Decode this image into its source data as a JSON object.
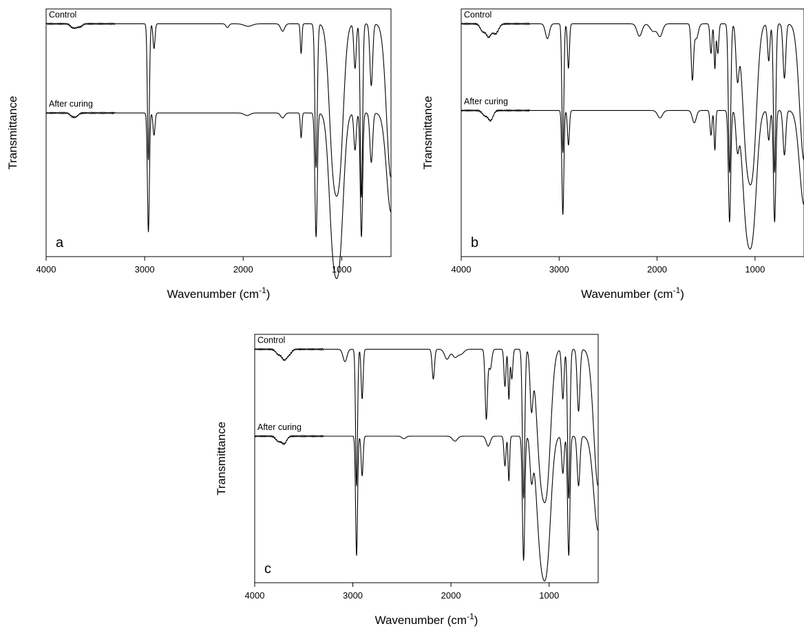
{
  "chart_data": [
    {
      "type": "line",
      "panel_label": "a",
      "xlabel": "Wavenumber (cm",
      "xlabel_superscript": "-1",
      "xlabel_suffix": ")",
      "ylabel": "Transmittance",
      "xlim": [
        4000,
        500
      ],
      "xticks": [
        4000,
        3000,
        2000,
        1000
      ],
      "y_tick_labels": false,
      "y_range_relative": [
        0,
        1
      ],
      "series": [
        {
          "name": "Control",
          "baseline": 0.94,
          "bands": [
            [
              3740,
              20,
              0.01
            ],
            [
              3700,
              25,
              0.015
            ],
            [
              3650,
              20,
              0.01
            ],
            [
              2962,
              10,
              0.55
            ],
            [
              2905,
              10,
              0.1
            ],
            [
              2160,
              15,
              0.015
            ],
            [
              1950,
              40,
              0.01
            ],
            [
              1600,
              20,
              0.03
            ],
            [
              1412,
              8,
              0.12
            ],
            [
              1260,
              12,
              0.58
            ],
            [
              1090,
              40,
              0.5
            ],
            [
              1020,
              40,
              0.52
            ],
            [
              865,
              12,
              0.18
            ],
            [
              800,
              12,
              0.7
            ],
            [
              700,
              14,
              0.25
            ],
            [
              500,
              45,
              0.62
            ]
          ]
        },
        {
          "name": "After curing",
          "baseline": 0.58,
          "bands": [
            [
              3740,
              20,
              0.01
            ],
            [
              3700,
              25,
              0.015
            ],
            [
              2962,
              10,
              0.48
            ],
            [
              2905,
              10,
              0.09
            ],
            [
              1960,
              30,
              0.01
            ],
            [
              1600,
              20,
              0.02
            ],
            [
              1412,
              8,
              0.1
            ],
            [
              1260,
              12,
              0.5
            ],
            [
              1090,
              40,
              0.48
            ],
            [
              1020,
              40,
              0.5
            ],
            [
              865,
              12,
              0.15
            ],
            [
              800,
              12,
              0.5
            ],
            [
              700,
              14,
              0.2
            ],
            [
              500,
              45,
              0.4
            ]
          ]
        }
      ]
    },
    {
      "type": "line",
      "panel_label": "b",
      "xlabel": "Wavenumber (cm",
      "xlabel_superscript": "-1",
      "xlabel_suffix": ")",
      "ylabel": "Transmittance",
      "xlim": [
        4000,
        500
      ],
      "xticks": [
        4000,
        3000,
        2000,
        1000
      ],
      "y_tick_labels": false,
      "y_range_relative": [
        0,
        1
      ],
      "series": [
        {
          "name": "Control",
          "baseline": 0.94,
          "bands": [
            [
              3780,
              25,
              0.03
            ],
            [
              3720,
              25,
              0.05
            ],
            [
              3650,
              30,
              0.04
            ],
            [
              3120,
              20,
              0.06
            ],
            [
              2962,
              10,
              0.52
            ],
            [
              2905,
              10,
              0.18
            ],
            [
              2180,
              25,
              0.05
            ],
            [
              2040,
              30,
              0.03
            ],
            [
              1970,
              25,
              0.05
            ],
            [
              1640,
              12,
              0.22
            ],
            [
              1600,
              20,
              0.06
            ],
            [
              1450,
              10,
              0.12
            ],
            [
              1410,
              8,
              0.18
            ],
            [
              1380,
              10,
              0.12
            ],
            [
              1260,
              12,
              0.6
            ],
            [
              1180,
              15,
              0.2
            ],
            [
              1090,
              40,
              0.45
            ],
            [
              1020,
              40,
              0.5
            ],
            [
              860,
              12,
              0.15
            ],
            [
              800,
              12,
              0.6
            ],
            [
              700,
              14,
              0.22
            ],
            [
              500,
              45,
              0.55
            ]
          ]
        },
        {
          "name": "After curing",
          "baseline": 0.59,
          "bands": [
            [
              3760,
              25,
              0.02
            ],
            [
              3700,
              25,
              0.04
            ],
            [
              2962,
              10,
              0.42
            ],
            [
              2905,
              10,
              0.14
            ],
            [
              1970,
              25,
              0.03
            ],
            [
              1620,
              20,
              0.05
            ],
            [
              1450,
              10,
              0.1
            ],
            [
              1410,
              8,
              0.16
            ],
            [
              1260,
              12,
              0.45
            ],
            [
              1180,
              15,
              0.14
            ],
            [
              1090,
              40,
              0.4
            ],
            [
              1020,
              40,
              0.42
            ],
            [
              860,
              12,
              0.12
            ],
            [
              800,
              12,
              0.45
            ],
            [
              700,
              14,
              0.18
            ],
            [
              500,
              45,
              0.38
            ]
          ]
        }
      ]
    },
    {
      "type": "line",
      "panel_label": "c",
      "xlabel": "Wavenumber (cm",
      "xlabel_superscript": "-1",
      "xlabel_suffix": ")",
      "ylabel": "Transmittance",
      "xlim": [
        4000,
        500
      ],
      "xticks": [
        4000,
        3000,
        2000,
        1000
      ],
      "y_tick_labels": false,
      "y_range_relative": [
        0,
        1
      ],
      "series": [
        {
          "name": "Control",
          "baseline": 0.94,
          "bands": [
            [
              3760,
              25,
              0.02
            ],
            [
              3700,
              25,
              0.04
            ],
            [
              3650,
              25,
              0.02
            ],
            [
              3080,
              20,
              0.05
            ],
            [
              2962,
              10,
              0.55
            ],
            [
              2905,
              10,
              0.2
            ],
            [
              2180,
              12,
              0.12
            ],
            [
              2040,
              25,
              0.04
            ],
            [
              1960,
              25,
              0.03
            ],
            [
              1900,
              30,
              0.02
            ],
            [
              1640,
              12,
              0.28
            ],
            [
              1600,
              15,
              0.08
            ],
            [
              1450,
              10,
              0.15
            ],
            [
              1410,
              8,
              0.2
            ],
            [
              1380,
              10,
              0.12
            ],
            [
              1260,
              12,
              0.6
            ],
            [
              1180,
              15,
              0.22
            ],
            [
              1090,
              40,
              0.42
            ],
            [
              1020,
              40,
              0.48
            ],
            [
              860,
              12,
              0.2
            ],
            [
              800,
              12,
              0.6
            ],
            [
              700,
              14,
              0.25
            ],
            [
              500,
              45,
              0.55
            ]
          ]
        },
        {
          "name": "After curing",
          "baseline": 0.59,
          "bands": [
            [
              3760,
              25,
              0.02
            ],
            [
              3700,
              25,
              0.03
            ],
            [
              2962,
              10,
              0.48
            ],
            [
              2905,
              10,
              0.16
            ],
            [
              2480,
              20,
              0.01
            ],
            [
              1960,
              25,
              0.02
            ],
            [
              1620,
              20,
              0.04
            ],
            [
              1450,
              10,
              0.12
            ],
            [
              1410,
              8,
              0.18
            ],
            [
              1260,
              12,
              0.5
            ],
            [
              1180,
              15,
              0.16
            ],
            [
              1090,
              40,
              0.4
            ],
            [
              1020,
              40,
              0.45
            ],
            [
              860,
              12,
              0.15
            ],
            [
              800,
              12,
              0.48
            ],
            [
              700,
              14,
              0.2
            ],
            [
              500,
              45,
              0.38
            ]
          ]
        }
      ]
    }
  ]
}
